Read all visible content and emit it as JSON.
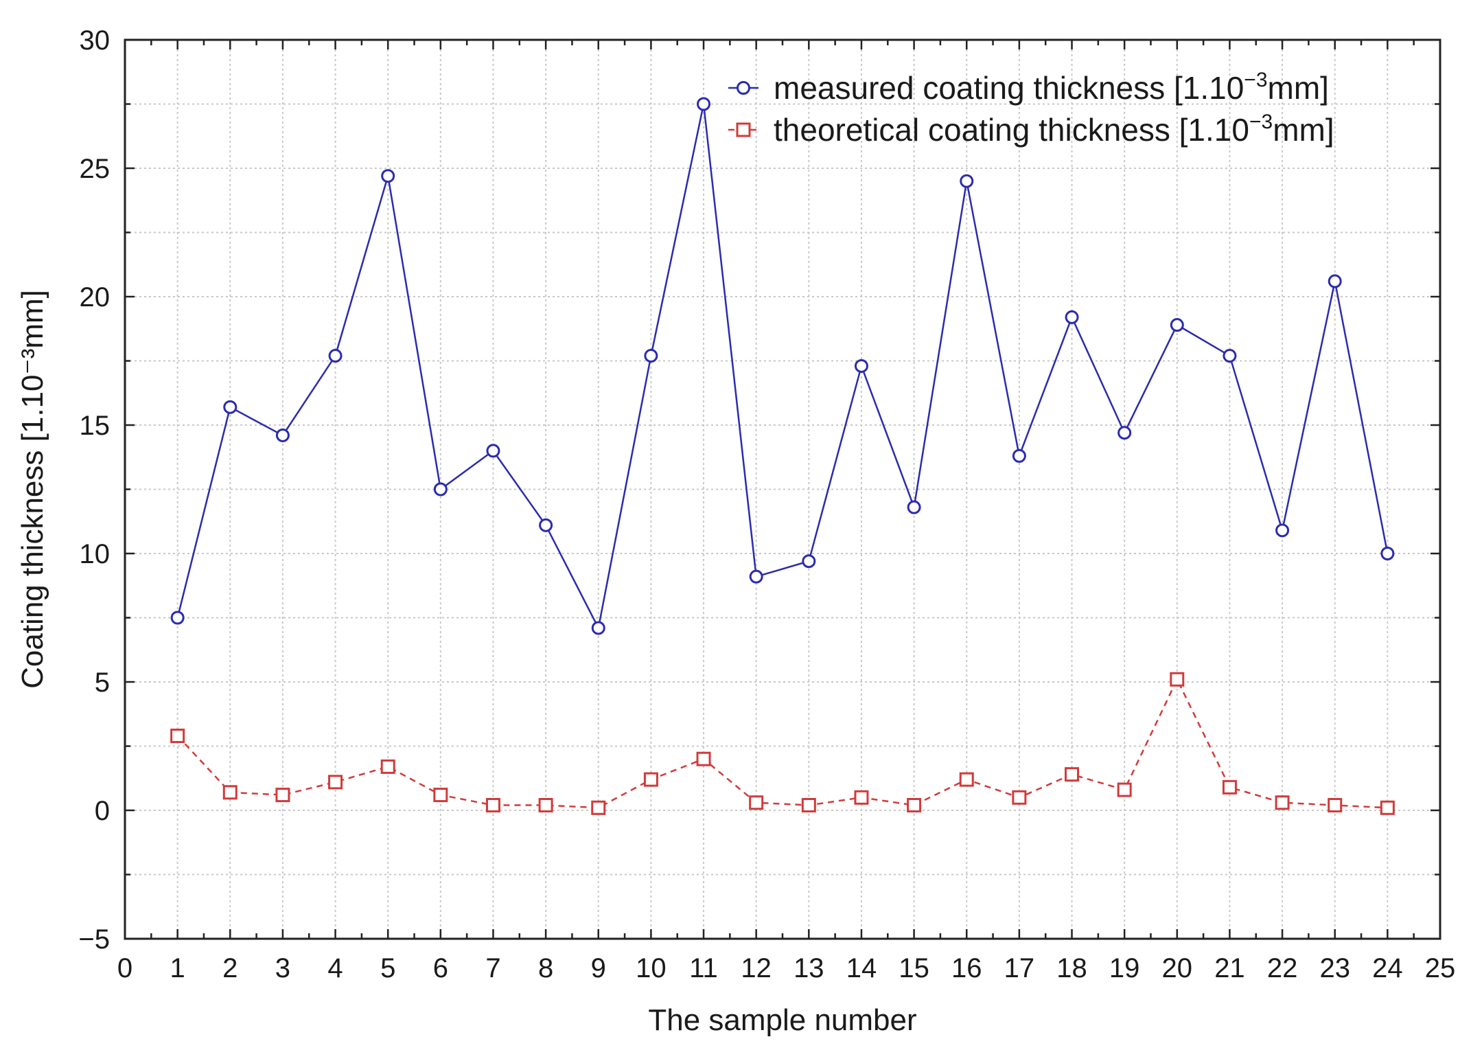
{
  "chart_data": {
    "type": "line",
    "title": "",
    "xlabel": "The sample number",
    "ylabel": "Coating thickness [1.10⁻³mm]",
    "xlim": [
      0,
      25
    ],
    "ylim": [
      -5,
      30
    ],
    "x_ticks": [
      "0",
      "1",
      "2",
      "3",
      "4",
      "5",
      "6",
      "7",
      "8",
      "9",
      "10",
      "11",
      "12",
      "13",
      "14",
      "15",
      "16",
      "17",
      "18",
      "19",
      "20",
      "21",
      "22",
      "23",
      "24",
      "25"
    ],
    "y_ticks": [
      "30",
      "25",
      "20",
      "15",
      "10",
      "5",
      "0",
      "−5"
    ],
    "grid": true,
    "legend_position": "top-right",
    "x": [
      1,
      2,
      3,
      4,
      5,
      6,
      7,
      8,
      9,
      10,
      11,
      12,
      13,
      14,
      15,
      16,
      17,
      18,
      19,
      20,
      21,
      22,
      23,
      24
    ],
    "series": [
      {
        "name": "measured coating thickness [1.10⁻³mm]",
        "label_main": "measured coating thickness [1.10",
        "label_sup": "−3",
        "label_end": "mm]",
        "color": "#2b2bb0",
        "marker": "circle",
        "line": "solid",
        "values": [
          7.5,
          15.7,
          14.6,
          17.7,
          24.7,
          12.5,
          14.0,
          11.1,
          7.1,
          17.7,
          27.5,
          9.1,
          9.7,
          17.3,
          11.8,
          24.5,
          13.8,
          19.2,
          14.7,
          18.9,
          17.7,
          10.9,
          20.6,
          10.0
        ]
      },
      {
        "name": "theoretical coating thickness [1.10⁻³mm]",
        "label_main": "theoretical coating thickness [1.10",
        "label_sup": "−3",
        "label_end": "mm]",
        "color": "#d23a3a",
        "marker": "square",
        "line": "dashed",
        "values": [
          2.9,
          0.7,
          0.6,
          1.1,
          1.7,
          0.6,
          0.2,
          0.2,
          0.1,
          1.2,
          2.0,
          0.3,
          0.2,
          0.5,
          0.2,
          1.2,
          0.5,
          1.4,
          0.8,
          5.1,
          0.9,
          0.3,
          0.2,
          0.1
        ]
      }
    ]
  }
}
